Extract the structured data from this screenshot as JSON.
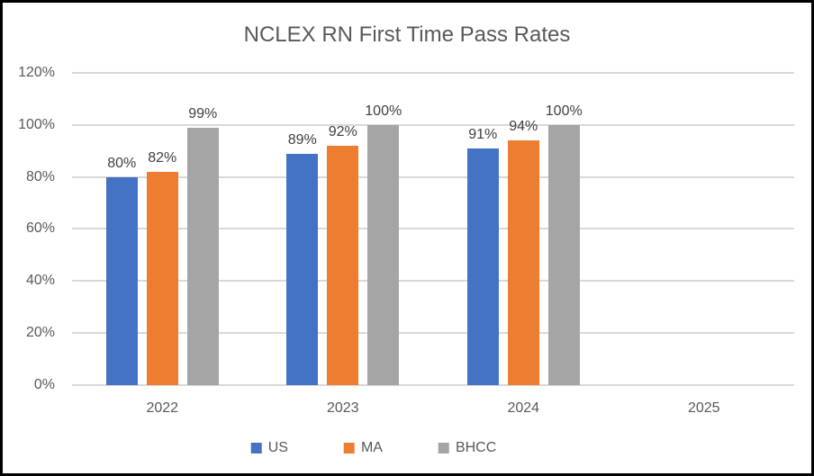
{
  "frame": {
    "border_color": "#000000",
    "background_color": "#ffffff"
  },
  "chart_data": {
    "type": "bar",
    "title": "NCLEX RN First Time Pass Rates",
    "categories": [
      "2022",
      "2023",
      "2024",
      "2025"
    ],
    "series": [
      {
        "name": "US",
        "color": "#4472C4",
        "values": [
          80,
          89,
          91,
          null
        ]
      },
      {
        "name": "MA",
        "color": "#ED7D31",
        "values": [
          82,
          92,
          94,
          null
        ]
      },
      {
        "name": "BHCC",
        "color": "#A5A5A5",
        "values": [
          99,
          100,
          100,
          null
        ]
      }
    ],
    "data_label_format": "{v}%",
    "y_ticks": [
      "0%",
      "20%",
      "40%",
      "60%",
      "80%",
      "100%",
      "120%"
    ],
    "ylim": [
      0,
      120
    ],
    "y_tick_step": 20,
    "grid": true,
    "legend_position": "bottom",
    "gridline_color": "#D9D9D9",
    "axis_text_color": "#595959",
    "data_label_color": "#404040"
  }
}
